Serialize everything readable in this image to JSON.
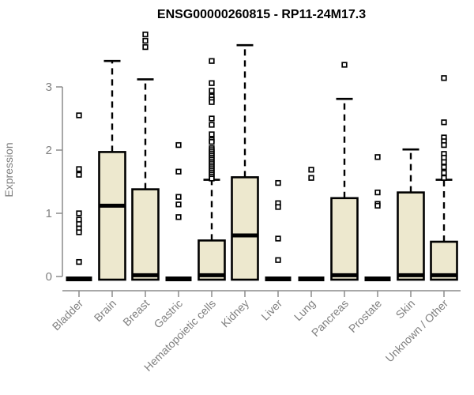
{
  "chart_data": {
    "type": "boxplot",
    "title": "ENSG00000260815 - RP11-24M17.3",
    "ylabel": "Expression",
    "xlabel": "",
    "ylim": [
      0,
      3.9
    ],
    "yticks": [
      0,
      1,
      2,
      3
    ],
    "grid": false,
    "legend": "none",
    "colors": {
      "box_fill": "#EDE8CE",
      "box_border": "#000000",
      "median": "#000000",
      "axis": "#8C8C8C",
      "tick_text": "#808080",
      "title_text": "#000000",
      "background": "#FFFFFF"
    },
    "categories": [
      {
        "label": "Bladder",
        "collapsed": true,
        "q1": 0,
        "median": 0.02,
        "q3": 0.04,
        "whisker_low": 0,
        "whisker_high": 0.04,
        "outliers": [
          2.55,
          1.7,
          1.61,
          1.0,
          0.9,
          0.83,
          0.76,
          0.7,
          0.23
        ]
      },
      {
        "label": "Brain",
        "collapsed": false,
        "q1": 0,
        "median": 1.12,
        "q3": 1.97,
        "whisker_low": 0,
        "whisker_high": 3.41,
        "outliers": []
      },
      {
        "label": "Breast",
        "collapsed": false,
        "q1": 0,
        "median": 0.02,
        "q3": 1.38,
        "whisker_low": 0,
        "whisker_high": 3.12,
        "outliers": [
          3.83,
          3.73,
          3.63
        ]
      },
      {
        "label": "Gastric",
        "collapsed": true,
        "q1": 0,
        "median": 0.02,
        "q3": 0.04,
        "whisker_low": 0,
        "whisker_high": 0.04,
        "outliers": [
          2.08,
          1.66,
          1.26,
          1.14,
          0.94
        ]
      },
      {
        "label": "Hematopoietic cells",
        "collapsed": false,
        "q1": 0,
        "median": 0.02,
        "q3": 0.57,
        "whisker_low": 0,
        "whisker_high": 1.53,
        "outliers": [
          3.41,
          3.06,
          2.94,
          2.85,
          2.8,
          2.76,
          2.5,
          2.4,
          2.25,
          2.16,
          2.13,
          2.03,
          2.0,
          1.97,
          1.94,
          1.91,
          1.88,
          1.85,
          1.82,
          1.79,
          1.76,
          1.73,
          1.7,
          1.67,
          1.64,
          1.61,
          1.58,
          1.55
        ]
      },
      {
        "label": "Kidney",
        "collapsed": false,
        "q1": 0,
        "median": 0.65,
        "q3": 1.57,
        "whisker_low": 0,
        "whisker_high": 3.66,
        "outliers": []
      },
      {
        "label": "Liver",
        "collapsed": true,
        "q1": 0,
        "median": 0.02,
        "q3": 0.04,
        "whisker_low": 0,
        "whisker_high": 0.04,
        "outliers": [
          1.48,
          1.16,
          1.1,
          0.6,
          0.26
        ]
      },
      {
        "label": "Lung",
        "collapsed": true,
        "q1": 0,
        "median": 0.02,
        "q3": 0.04,
        "whisker_low": 0,
        "whisker_high": 0.04,
        "outliers": [
          1.69,
          1.56
        ]
      },
      {
        "label": "Pancreas",
        "collapsed": false,
        "q1": 0,
        "median": 0.02,
        "q3": 1.24,
        "whisker_low": 0,
        "whisker_high": 2.81,
        "outliers": [
          3.35
        ]
      },
      {
        "label": "Prostate",
        "collapsed": true,
        "q1": 0,
        "median": 0.02,
        "q3": 0.04,
        "whisker_low": 0,
        "whisker_high": 0.04,
        "outliers": [
          1.89,
          1.33,
          1.15,
          1.12
        ]
      },
      {
        "label": "Skin",
        "collapsed": false,
        "q1": 0,
        "median": 0.02,
        "q3": 1.33,
        "whisker_low": 0,
        "whisker_high": 2.01,
        "outliers": []
      },
      {
        "label": "Unknown / Other",
        "collapsed": false,
        "q1": 0,
        "median": 0.02,
        "q3": 0.55,
        "whisker_low": 0,
        "whisker_high": 1.53,
        "outliers": [
          3.14,
          2.44,
          2.2,
          2.14,
          2.08,
          1.94,
          1.88,
          1.81,
          1.73,
          1.64,
          1.56
        ]
      }
    ]
  }
}
